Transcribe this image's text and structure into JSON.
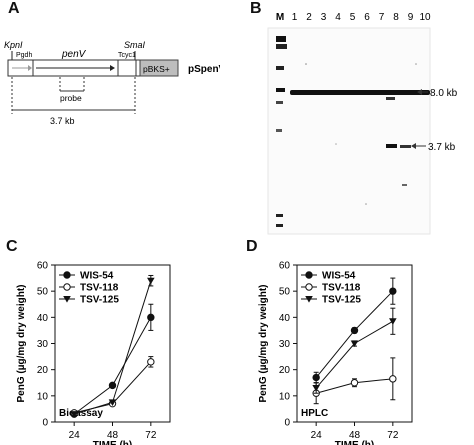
{
  "figure": {
    "panel_a": {
      "letter": "A",
      "kpn": "KpnI",
      "sma": "SmaI",
      "pgdh": "Pgdh",
      "penv": "penV",
      "tcyc1": "Tcyc1",
      "pbks": "pBKS+",
      "plasmid": "pSpenV",
      "probe": "probe",
      "size": "3.7 kb"
    },
    "panel_b": {
      "letter": "B",
      "lanes": [
        "M",
        "1",
        "2",
        "3",
        "4",
        "5",
        "6",
        "7",
        "8",
        "9",
        "10"
      ],
      "band_upper": "8.0 kb",
      "band_lower": "3.7 kb"
    }
  },
  "chart_data": [
    {
      "type": "line",
      "panel_label": "C",
      "title": "",
      "xlabel": "TIME (h)",
      "ylabel": "PenG (µg/mg dry weight)",
      "method_label": "Bioassay",
      "x": [
        24,
        48,
        72
      ],
      "xlim": [
        12,
        84
      ],
      "ylim": [
        0,
        60
      ],
      "y_ticks": [
        0,
        10,
        20,
        30,
        40,
        50,
        60
      ],
      "legend_position": "top-left",
      "grid": false,
      "series": [
        {
          "name": "WIS-54",
          "marker": "circle-filled",
          "values": [
            3,
            14,
            40
          ],
          "errors": [
            0.5,
            0.5,
            5
          ]
        },
        {
          "name": "TSV-118",
          "marker": "circle-open",
          "values": [
            3.5,
            7,
            23
          ],
          "errors": [
            0.5,
            0.5,
            2
          ]
        },
        {
          "name": "TSV-125",
          "marker": "triangle-down-filled",
          "values": [
            3,
            7.5,
            54
          ],
          "errors": [
            0.5,
            0.5,
            2
          ]
        }
      ]
    },
    {
      "type": "line",
      "panel_label": "D",
      "title": "",
      "xlabel": "TIME (h)",
      "ylabel": "PenG (µg/mg dry weight)",
      "method_label": "HPLC",
      "x": [
        24,
        48,
        72
      ],
      "xlim": [
        12,
        84
      ],
      "ylim": [
        0,
        60
      ],
      "y_ticks": [
        0,
        10,
        20,
        30,
        40,
        50,
        60
      ],
      "legend_position": "top-left",
      "grid": false,
      "series": [
        {
          "name": "WIS-54",
          "marker": "circle-filled",
          "values": [
            17,
            35,
            50
          ],
          "errors": [
            2,
            1,
            5
          ]
        },
        {
          "name": "TSV-118",
          "marker": "circle-open",
          "values": [
            11,
            15,
            16.5
          ],
          "errors": [
            4,
            1.5,
            8
          ]
        },
        {
          "name": "TSV-125",
          "marker": "triangle-down-filled",
          "values": [
            13,
            30,
            38.5
          ],
          "errors": [
            2,
            1,
            5
          ]
        }
      ]
    }
  ]
}
